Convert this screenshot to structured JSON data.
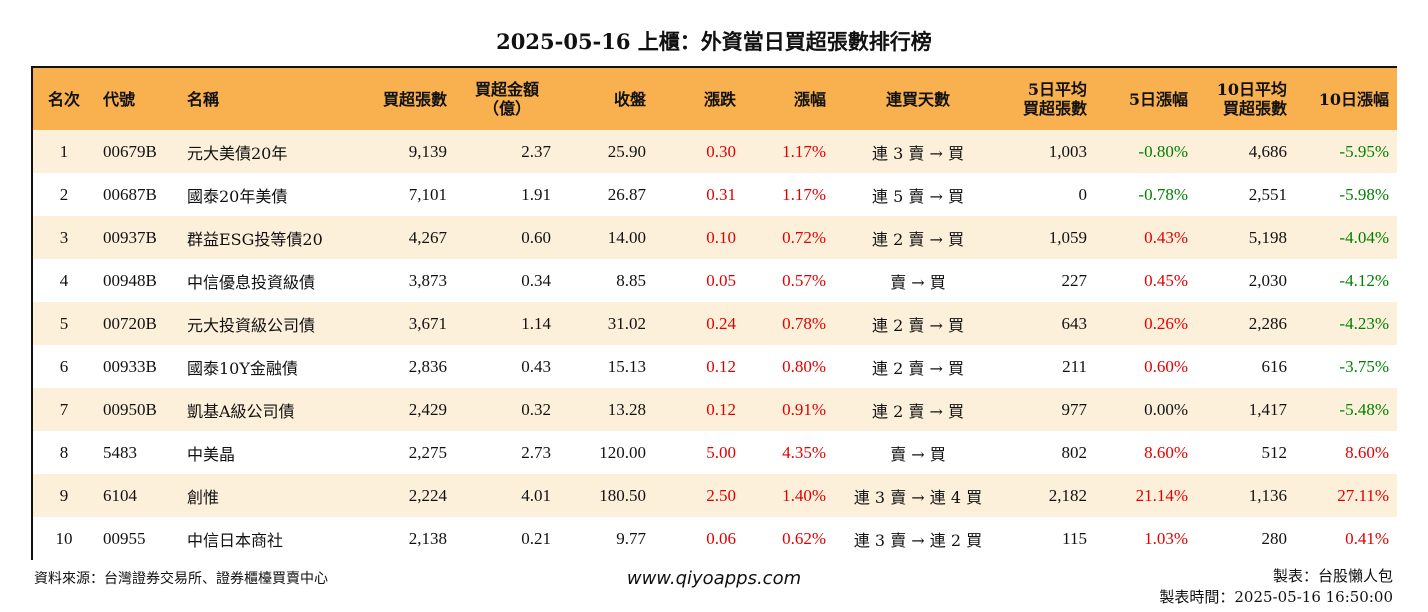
{
  "title": "2025-05-16 上櫃：外資當日買超張數排行榜",
  "colors": {
    "header_bg": "#f9b14f",
    "row_alt_bg": "#fdf0db",
    "up": "#e00000",
    "down": "#008000"
  },
  "headers": {
    "rank": "名次",
    "code": "代號",
    "name": "名稱",
    "net_buy": "買超張數",
    "amount_l1": "買超金額",
    "amount_l2": "（億）",
    "close": "收盤",
    "change": "漲跌",
    "pct": "漲幅",
    "streak": "連買天數",
    "avg5_l1": "5日平均",
    "avg5_l2": "買超張數",
    "pct5": "5日漲幅",
    "avg10_l1": "10日平均",
    "avg10_l2": "買超張數",
    "pct10": "10日漲幅"
  },
  "rows": [
    {
      "rank": "1",
      "code": "00679B",
      "name": "元大美債20年",
      "net_buy": "9,139",
      "amount": "2.37",
      "close": "25.90",
      "change": "0.30",
      "pct": "1.17%",
      "streak": "連 3 賣 → 買",
      "avg5": "1,003",
      "pct5": "-0.80%",
      "pct5_color": "green",
      "avg10": "4,686",
      "pct10": "-5.95%",
      "pct10_color": "green"
    },
    {
      "rank": "2",
      "code": "00687B",
      "name": "國泰20年美債",
      "net_buy": "7,101",
      "amount": "1.91",
      "close": "26.87",
      "change": "0.31",
      "pct": "1.17%",
      "streak": "連 5 賣 → 買",
      "avg5": "0",
      "pct5": "-0.78%",
      "pct5_color": "green",
      "avg10": "2,551",
      "pct10": "-5.98%",
      "pct10_color": "green"
    },
    {
      "rank": "3",
      "code": "00937B",
      "name": "群益ESG投等債20",
      "net_buy": "4,267",
      "amount": "0.60",
      "close": "14.00",
      "change": "0.10",
      "pct": "0.72%",
      "streak": "連 2 賣 → 買",
      "avg5": "1,059",
      "pct5": "0.43%",
      "pct5_color": "red",
      "avg10": "5,198",
      "pct10": "-4.04%",
      "pct10_color": "green"
    },
    {
      "rank": "4",
      "code": "00948B",
      "name": "中信優息投資級債",
      "net_buy": "3,873",
      "amount": "0.34",
      "close": "8.85",
      "change": "0.05",
      "pct": "0.57%",
      "streak": "賣 → 買",
      "avg5": "227",
      "pct5": "0.45%",
      "pct5_color": "red",
      "avg10": "2,030",
      "pct10": "-4.12%",
      "pct10_color": "green"
    },
    {
      "rank": "5",
      "code": "00720B",
      "name": "元大投資級公司債",
      "net_buy": "3,671",
      "amount": "1.14",
      "close": "31.02",
      "change": "0.24",
      "pct": "0.78%",
      "streak": "連 2 賣 → 買",
      "avg5": "643",
      "pct5": "0.26%",
      "pct5_color": "red",
      "avg10": "2,286",
      "pct10": "-4.23%",
      "pct10_color": "green"
    },
    {
      "rank": "6",
      "code": "00933B",
      "name": "國泰10Y金融債",
      "net_buy": "2,836",
      "amount": "0.43",
      "close": "15.13",
      "change": "0.12",
      "pct": "0.80%",
      "streak": "連 2 賣 → 買",
      "avg5": "211",
      "pct5": "0.60%",
      "pct5_color": "red",
      "avg10": "616",
      "pct10": "-3.75%",
      "pct10_color": "green"
    },
    {
      "rank": "7",
      "code": "00950B",
      "name": "凱基A級公司債",
      "net_buy": "2,429",
      "amount": "0.32",
      "close": "13.28",
      "change": "0.12",
      "pct": "0.91%",
      "streak": "連 2 賣 → 買",
      "avg5": "977",
      "pct5": "0.00%",
      "pct5_color": "black",
      "avg10": "1,417",
      "pct10": "-5.48%",
      "pct10_color": "green"
    },
    {
      "rank": "8",
      "code": "5483",
      "name": "中美晶",
      "net_buy": "2,275",
      "amount": "2.73",
      "close": "120.00",
      "change": "5.00",
      "pct": "4.35%",
      "streak": "賣 → 買",
      "avg5": "802",
      "pct5": "8.60%",
      "pct5_color": "red",
      "avg10": "512",
      "pct10": "8.60%",
      "pct10_color": "red"
    },
    {
      "rank": "9",
      "code": "6104",
      "name": "創惟",
      "net_buy": "2,224",
      "amount": "4.01",
      "close": "180.50",
      "change": "2.50",
      "pct": "1.40%",
      "streak": "連 3 賣 → 連 4 買",
      "avg5": "2,182",
      "pct5": "21.14%",
      "pct5_color": "red",
      "avg10": "1,136",
      "pct10": "27.11%",
      "pct10_color": "red"
    },
    {
      "rank": "10",
      "code": "00955",
      "name": "中信日本商社",
      "net_buy": "2,138",
      "amount": "0.21",
      "close": "9.77",
      "change": "0.06",
      "pct": "0.62%",
      "streak": "連 3 賣 → 連 2 買",
      "avg5": "115",
      "pct5": "1.03%",
      "pct5_color": "red",
      "avg10": "280",
      "pct10": "0.41%",
      "pct10_color": "red"
    }
  ],
  "footer": {
    "source": "資料來源：台灣證券交易所、證券櫃檯買賣中心",
    "website": "www.qiyoapps.com",
    "maker": "製表：台股懶人包",
    "made_time": "製表時間：2025-05-16 16:50:00"
  }
}
